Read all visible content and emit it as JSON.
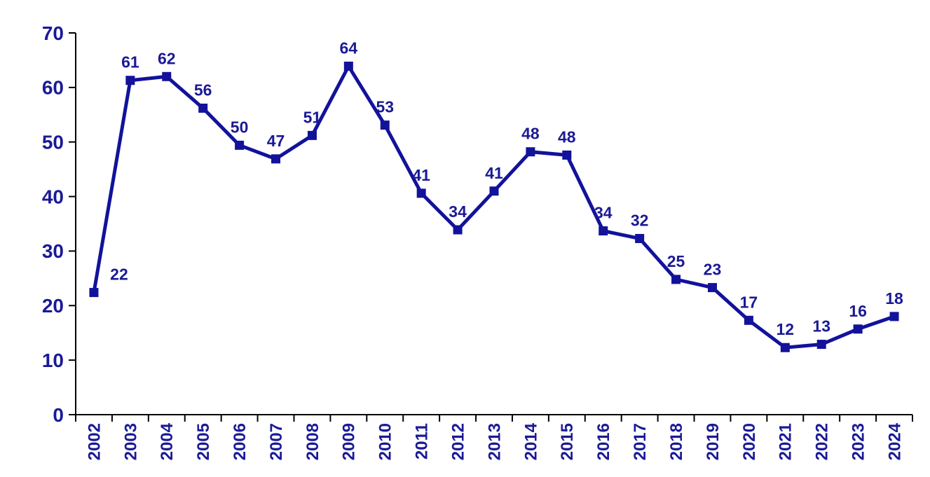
{
  "chart_data": {
    "type": "line",
    "title": "",
    "xlabel": "",
    "ylabel": "",
    "categories": [
      "2002",
      "2003",
      "2004",
      "2005",
      "2006",
      "2007",
      "2008",
      "2009",
      "2010",
      "2011",
      "2012",
      "2013",
      "2014",
      "2015",
      "2016",
      "2017",
      "2018",
      "2019",
      "2020",
      "2021",
      "2022",
      "2023",
      "2024"
    ],
    "values": [
      22,
      61,
      62,
      56,
      50,
      47,
      51,
      64,
      53,
      41,
      34,
      41,
      48,
      48,
      34,
      32,
      25,
      23,
      17,
      12,
      13,
      16,
      18
    ],
    "plot_values": [
      22.4,
      61.3,
      62.0,
      56.2,
      49.4,
      46.9,
      51.2,
      63.9,
      53.1,
      40.6,
      33.9,
      41.0,
      48.2,
      47.6,
      33.7,
      32.3,
      24.8,
      23.3,
      17.3,
      12.3,
      12.9,
      15.7,
      18.0
    ],
    "yticks": [
      0,
      10,
      20,
      30,
      40,
      50,
      60,
      70
    ],
    "ylim": [
      0,
      70
    ],
    "grid": "off",
    "legend": "none",
    "marker": "square",
    "data_labels": "above",
    "label_offsets": {
      "0": [
        36,
        0
      ]
    },
    "line_color": "#12129B",
    "marker_color": "#12129B",
    "text_color": "#1A1A96",
    "axis_color": "#000000",
    "background_color": "#ffffff"
  }
}
